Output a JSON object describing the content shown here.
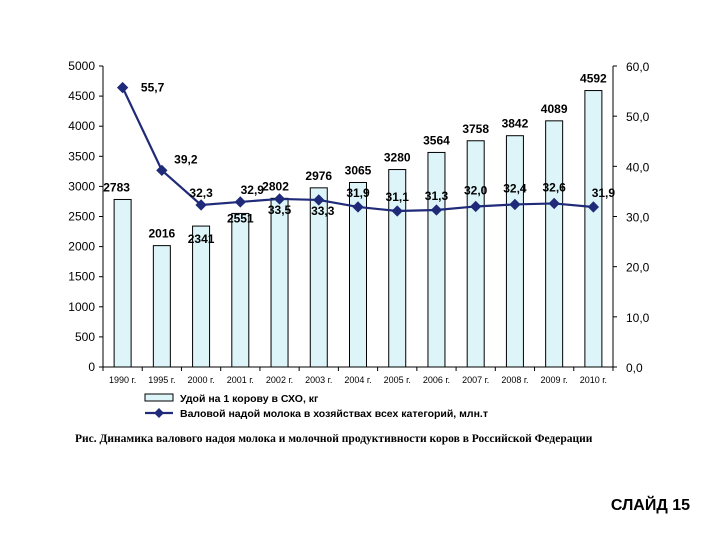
{
  "caption": "Рис. Динамика валового надоя молока и молочной продуктивности коров в Российской Федерации",
  "slide_label": "СЛАЙД 15",
  "colors": {
    "bar_fill": "#ddf5f9",
    "bar_stroke": "#000000",
    "line": "#1f2a78",
    "axis": "#000000"
  },
  "chart_data": {
    "type": "bar",
    "categories": [
      "1990 г.",
      "1995 г.",
      "2000 г.",
      "2001 г.",
      "2002 г.",
      "2003 г.",
      "2004 г.",
      "2005 г.",
      "2006 г.",
      "2007 г.",
      "2008 г.",
      "2009 г.",
      "2010 г."
    ],
    "series": [
      {
        "name": "Удой на 1 корову в СХО, кг",
        "type": "bar",
        "axis": "left",
        "values": [
          2783,
          2016,
          2341,
          2551,
          2802,
          2976,
          3065,
          3280,
          3564,
          3758,
          3842,
          4089,
          4592
        ],
        "labels": [
          "2783",
          "2016",
          "2341",
          "2551",
          "2802",
          "2976",
          "3065",
          "3280",
          "3564",
          "3758",
          "3842",
          "4089",
          "4592"
        ]
      },
      {
        "name": "Валовой надой молока в хозяйствах всех категорий, млн.т",
        "type": "line",
        "axis": "right",
        "values": [
          55.7,
          39.2,
          32.3,
          32.9,
          33.5,
          33.3,
          31.9,
          31.1,
          31.3,
          32.0,
          32.4,
          32.6,
          31.9
        ],
        "labels": [
          "55,7",
          "39,2",
          "32,3",
          "32,9",
          "33,5",
          "33,3",
          "31,9",
          "31,1",
          "31,3",
          "32,0",
          "32,4",
          "32,6",
          "31,9"
        ]
      }
    ],
    "y_left": {
      "ylim": [
        0,
        5000
      ],
      "ticks": [
        "0",
        "500",
        "1000",
        "1500",
        "2000",
        "2500",
        "3000",
        "3500",
        "4000",
        "4500",
        "5000"
      ]
    },
    "y_right": {
      "ylim": [
        0,
        60
      ],
      "ticks": [
        "0,0",
        "10,0",
        "20,0",
        "30,0",
        "40,0",
        "50,0",
        "60,0"
      ]
    },
    "grid": false,
    "legend_position": "bottom"
  }
}
